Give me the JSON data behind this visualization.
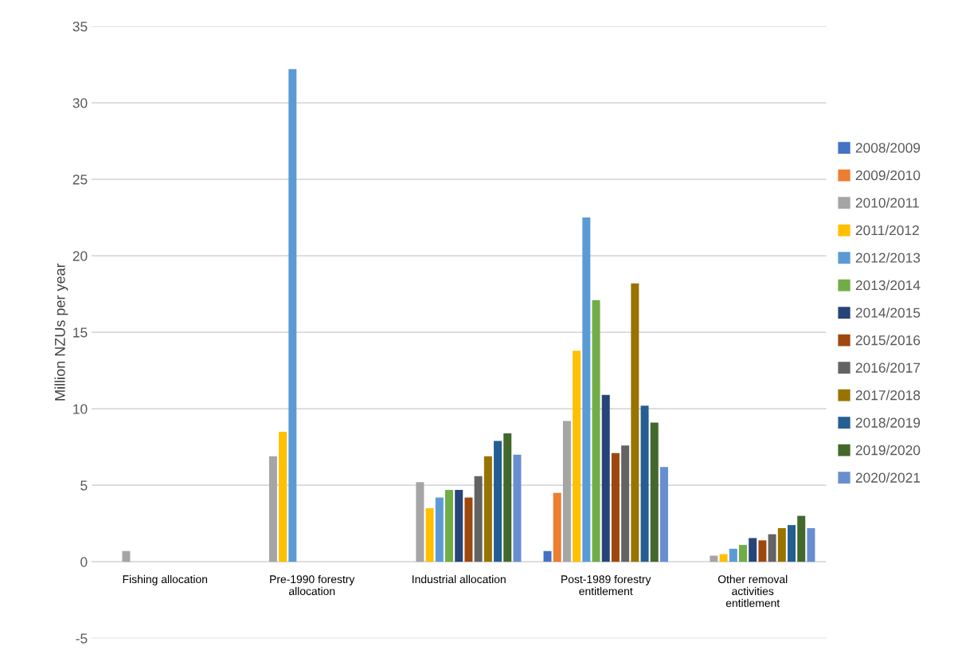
{
  "chart_data": {
    "type": "bar",
    "ylabel": "Million NZUs per year",
    "categories": [
      "Fishing allocation",
      "Pre-1990 forestry\nallocation",
      "Industrial allocation",
      "Post-1989 forestry\nentitlement",
      "Other removal\nactivities\nentitlement"
    ],
    "series": [
      {
        "name": "2008/2009",
        "color": "#4472c4",
        "values": [
          null,
          null,
          null,
          0.7,
          null
        ]
      },
      {
        "name": "2009/2010",
        "color": "#ed7d31",
        "values": [
          null,
          null,
          null,
          4.5,
          null
        ]
      },
      {
        "name": "2010/2011",
        "color": "#a5a5a5",
        "values": [
          0.7,
          6.9,
          5.2,
          9.2,
          0.4
        ]
      },
      {
        "name": "2011/2012",
        "color": "#ffc000",
        "values": [
          null,
          8.5,
          3.5,
          13.8,
          0.5
        ]
      },
      {
        "name": "2012/2013",
        "color": "#5b9bd5",
        "values": [
          null,
          32.2,
          4.2,
          22.5,
          0.85
        ]
      },
      {
        "name": "2013/2014",
        "color": "#70ad47",
        "values": [
          null,
          null,
          4.7,
          17.1,
          1.1
        ]
      },
      {
        "name": "2014/2015",
        "color": "#264478",
        "values": [
          null,
          null,
          4.7,
          10.9,
          1.55
        ]
      },
      {
        "name": "2015/2016",
        "color": "#9e480e",
        "values": [
          null,
          null,
          4.2,
          7.1,
          1.4
        ]
      },
      {
        "name": "2016/2017",
        "color": "#636363",
        "values": [
          null,
          null,
          5.6,
          7.6,
          1.8
        ]
      },
      {
        "name": "2017/2018",
        "color": "#997300",
        "values": [
          null,
          null,
          6.9,
          18.2,
          2.2
        ]
      },
      {
        "name": "2018/2019",
        "color": "#255e91",
        "values": [
          null,
          null,
          7.9,
          10.2,
          2.4
        ]
      },
      {
        "name": "2019/2020",
        "color": "#43682b",
        "values": [
          null,
          null,
          8.4,
          9.1,
          3.0
        ]
      },
      {
        "name": "2020/2021",
        "color": "#698ed0",
        "values": [
          null,
          null,
          7.0,
          6.2,
          2.2
        ]
      }
    ],
    "ylim": [
      -5,
      35
    ],
    "yticks": [
      -5,
      0,
      5,
      10,
      15,
      20,
      25,
      30,
      35
    ],
    "grid": "y",
    "legend": "right"
  }
}
